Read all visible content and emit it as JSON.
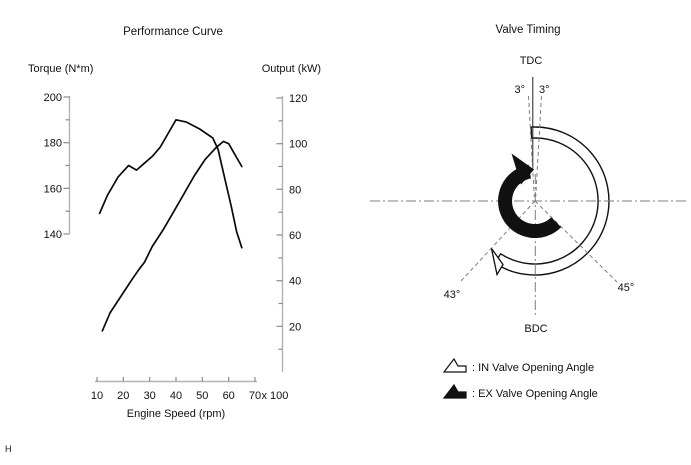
{
  "chart_data": {
    "type": "line",
    "title": "Performance Curve",
    "x_axis": {
      "label": "Engine Speed (rpm)",
      "unit_note": "x 100",
      "ticks": [
        10,
        20,
        30,
        40,
        50,
        60,
        70
      ],
      "range": [
        10,
        70
      ]
    },
    "y_axis_left": {
      "label": "Torque (N*m)",
      "ticks": [
        200,
        180,
        160,
        140
      ],
      "range_shown": [
        140,
        200
      ]
    },
    "y_axis_right": {
      "label": "Output (kW)",
      "ticks": [
        120,
        100,
        80,
        60,
        40,
        20
      ],
      "range": [
        0,
        120
      ]
    },
    "grid": false,
    "series": [
      {
        "name": "Torque",
        "axis": "left",
        "x": [
          11,
          14,
          18,
          22,
          25,
          28,
          31,
          34,
          37,
          40,
          44,
          49,
          54,
          56,
          59,
          61,
          63,
          65
        ],
        "values": [
          149,
          157,
          165,
          170,
          168,
          171,
          174,
          178,
          184,
          190,
          189,
          186,
          182,
          177,
          162,
          152,
          141,
          134
        ]
      },
      {
        "name": "Output",
        "axis": "right",
        "x": [
          12,
          15,
          19,
          23,
          26,
          28,
          31,
          35,
          39,
          43,
          47,
          51,
          55,
          58,
          60,
          62,
          65
        ],
        "values": [
          18,
          26,
          33,
          40,
          45,
          48,
          55,
          62,
          70,
          78,
          86,
          93,
          98,
          101,
          100,
          96,
          90
        ]
      }
    ]
  },
  "valve_timing": {
    "title": "Valve Timing",
    "tdc_label": "TDC",
    "bdc_label": "BDC",
    "in_open_label": "3°",
    "ex_close_label": "3°",
    "in_close_label": "43°",
    "ex_open_label": "45°",
    "in_open_deg": 3,
    "ex_close_deg": 3,
    "in_close_deg": 43,
    "ex_open_deg": 45,
    "legend": {
      "in": ": IN Valve Opening Angle",
      "ex": ": EX Valve Opening Angle"
    }
  },
  "footer": {
    "page_mark": "H"
  }
}
